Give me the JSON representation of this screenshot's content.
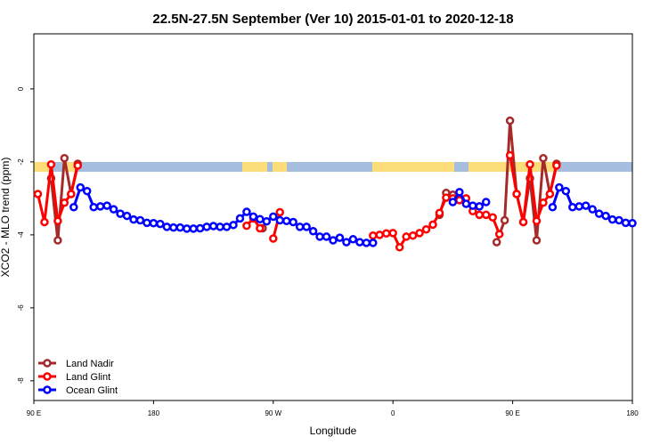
{
  "chart_data": {
    "type": "line",
    "title": "22.5N-27.5N September (Ver 10)   2015-01-01 to 2020-12-18",
    "x_label": "Longitude",
    "y_label": "XCO2 - MLO trend (ppm)",
    "xlim": [
      90,
      540
    ],
    "ylim": [
      -8.54,
      1.51
    ],
    "xticks": [
      {
        "value": 90,
        "label": "90 E"
      },
      180,
      {
        "value": 270,
        "label": "90 W"
      },
      {
        "value": 360,
        "label": "0"
      },
      {
        "value": 450,
        "label": "90 E"
      },
      {
        "value": 540,
        "label": "180"
      }
    ],
    "yticks": [
      0,
      -2,
      -4,
      -6,
      -8
    ],
    "legend": "bottom-left",
    "series": [
      {
        "name": "Land Nadir",
        "color": "#a52a2a",
        "x": [
          103,
          108,
          113,
          118,
          123,
          190,
          262,
          330,
          395,
          400,
          405,
          410,
          420,
          438,
          444,
          448,
          453,
          458,
          463,
          468,
          473,
          478,
          483
        ],
        "values": [
          -2.45,
          -4.15,
          -1.9,
          -2.88,
          -2.05,
          null,
          -3.82,
          null,
          -3.45,
          -2.85,
          -2.9,
          -3.0,
          null,
          -4.2,
          -3.6,
          -0.87,
          -2.88,
          -3.65,
          -2.45,
          -4.15,
          -1.9,
          -2.88,
          -2.05
        ]
      },
      {
        "name": "Land Glint",
        "color": "#ff0000",
        "x": [
          93,
          98,
          103,
          108,
          113,
          118,
          123,
          190,
          250,
          255,
          260,
          265,
          270,
          275,
          300,
          345,
          350,
          355,
          360,
          365,
          370,
          375,
          380,
          385,
          390,
          395,
          400,
          405,
          410,
          415,
          420,
          425,
          430,
          435,
          440,
          444,
          448,
          453,
          458,
          463,
          468,
          473,
          478,
          483
        ],
        "values": [
          -2.88,
          -3.65,
          -2.07,
          -3.62,
          -3.12,
          -2.88,
          -2.1,
          null,
          -3.75,
          -3.55,
          -3.82,
          null,
          -4.1,
          -3.38,
          null,
          -4.02,
          -4.0,
          -3.96,
          -3.95,
          -4.34,
          -4.05,
          -4.02,
          -3.95,
          -3.85,
          -3.72,
          -3.4,
          -2.98,
          -3.0,
          -3.05,
          -3.0,
          -3.35,
          -3.45,
          -3.45,
          -3.52,
          -3.98,
          null,
          -1.82,
          -2.88,
          -3.65,
          -2.07,
          -3.62,
          -3.12,
          -2.88,
          -2.1
        ]
      },
      {
        "name": "Ocean Glint",
        "color": "#0000ff",
        "x": [
          120,
          125,
          130,
          135,
          140,
          145,
          150,
          155,
          160,
          165,
          170,
          175,
          180,
          185,
          190,
          195,
          200,
          205,
          210,
          215,
          220,
          225,
          230,
          235,
          240,
          245,
          250,
          255,
          260,
          265,
          270,
          275,
          280,
          285,
          290,
          295,
          300,
          305,
          310,
          315,
          320,
          325,
          330,
          335,
          340,
          345,
          370,
          405,
          410,
          415,
          420,
          425,
          430,
          455,
          480,
          485,
          490,
          495,
          500,
          505,
          510,
          515,
          520,
          525,
          530,
          535,
          540
        ],
        "values": [
          -3.24,
          -2.7,
          -2.8,
          -3.24,
          -3.22,
          -3.2,
          -3.3,
          -3.42,
          -3.48,
          -3.58,
          -3.6,
          -3.67,
          -3.68,
          -3.7,
          -3.78,
          -3.8,
          -3.8,
          -3.83,
          -3.83,
          -3.82,
          -3.78,
          -3.76,
          -3.78,
          -3.78,
          -3.73,
          -3.55,
          -3.37,
          -3.5,
          -3.57,
          -3.63,
          -3.5,
          -3.6,
          -3.62,
          -3.65,
          -3.78,
          -3.78,
          -3.9,
          -4.05,
          -4.05,
          -4.15,
          -4.08,
          -4.2,
          -4.12,
          -4.2,
          -4.22,
          -4.22,
          null,
          -3.1,
          -2.83,
          -3.15,
          -3.2,
          -3.22,
          -3.1,
          null,
          -3.24,
          -2.7,
          -2.8,
          -3.24,
          -3.22,
          -3.2,
          -3.3,
          -3.42,
          -3.48,
          -3.58,
          -3.6,
          -3.67,
          -3.68
        ]
      }
    ]
  }
}
